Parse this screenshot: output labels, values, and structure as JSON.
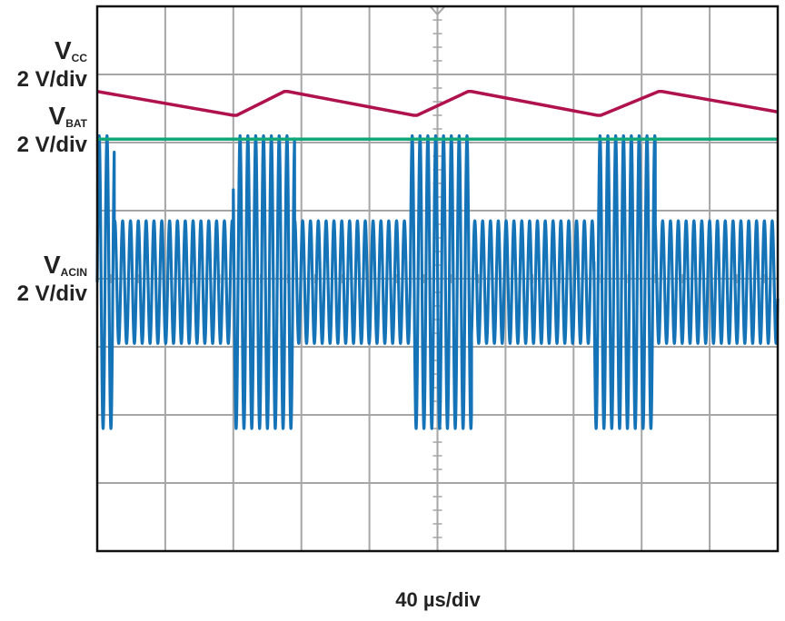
{
  "chart_data": {
    "type": "line",
    "title": "",
    "timebase": "40 µs/div",
    "grid": true,
    "divisions": {
      "x": 10,
      "y": 8
    },
    "xlim_div": [
      0,
      10
    ],
    "ylim_div": [
      0,
      8
    ],
    "channels": [
      {
        "key": "vcc",
        "symbol": "V",
        "subscript": "CC",
        "scale": "2 V/div",
        "color": "#b0124e"
      },
      {
        "key": "vbat",
        "symbol": "V",
        "subscript": "BAT",
        "scale": "2 V/div",
        "color": "#10a878"
      },
      {
        "key": "vacin",
        "symbol": "V",
        "subscript": "ACIN",
        "scale": "2 V/div",
        "color": "#1573b8"
      }
    ],
    "series": [
      {
        "key": "vcc",
        "x_div": [
          0,
          2.0,
          2.05,
          2.75,
          2.8,
          4.65,
          4.7,
          5.45,
          5.5,
          7.35,
          7.4,
          8.25,
          8.3,
          10
        ],
        "y_div": [
          6.75,
          6.4,
          6.4,
          6.75,
          6.75,
          6.4,
          6.4,
          6.75,
          6.75,
          6.4,
          6.4,
          6.75,
          6.75,
          6.45
        ]
      },
      {
        "key": "vbat",
        "x_div": [
          0,
          10
        ],
        "y_div": [
          6.05,
          6.05
        ]
      },
      {
        "key": "vacin",
        "baseline_div": 3.95,
        "normal_amplitude_div": 0.9,
        "burst_amplitude_div": 2.15,
        "period_div": 0.115,
        "bursts_div": [
          [
            0,
            0.25
          ],
          [
            2.0,
            2.9
          ],
          [
            4.6,
            5.5
          ],
          [
            7.3,
            8.2
          ]
        ]
      }
    ]
  }
}
